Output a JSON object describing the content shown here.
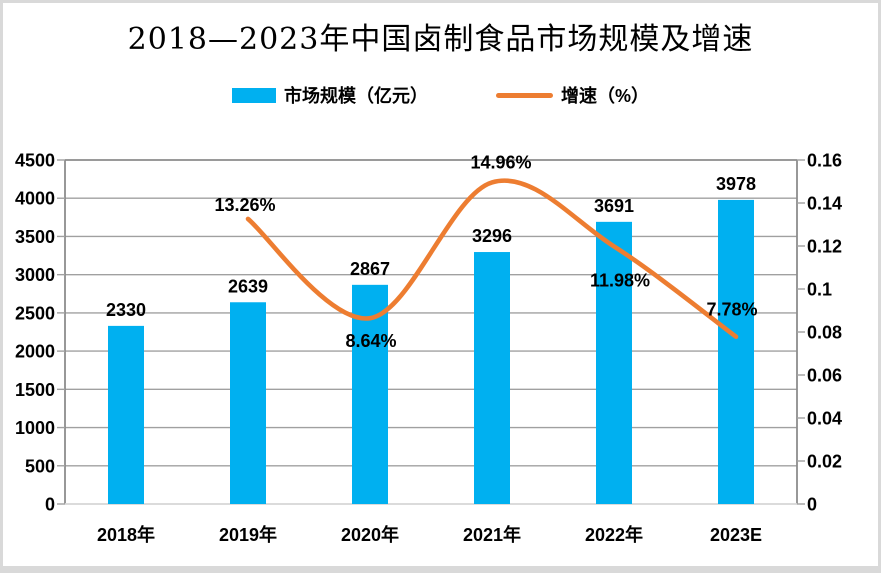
{
  "title": "2018—2023年中国卤制食品市场规模及增速",
  "legend": {
    "items": [
      {
        "label": "市场规模（亿元）",
        "swatch": "bar-swatch"
      },
      {
        "label": "增速（%）",
        "swatch": "line-swatch"
      }
    ]
  },
  "colors": {
    "bar": "#00B0F0",
    "line": "#ED7D31",
    "grid": "#a0a0a0",
    "axis": "#8c8c8c",
    "axis_bottom": "#d6d6d6",
    "text": "#000000",
    "frame": "#d9d9d9"
  },
  "chart_data": {
    "type": "bar+line combo",
    "title": "2018—2023年中国卤制食品市场规模及增速",
    "categories": [
      "2018年",
      "2019年",
      "2020年",
      "2021年",
      "2022年",
      "2023E"
    ],
    "series": [
      {
        "name": "市场规模（亿元）",
        "type": "bar",
        "axis": "left",
        "values": [
          2330,
          2639,
          2867,
          3296,
          3691,
          3978
        ],
        "data_labels": [
          "2330",
          "2639",
          "2867",
          "3296",
          "3691",
          "3978"
        ]
      },
      {
        "name": "增速（%）",
        "type": "line",
        "axis": "right",
        "smooth": true,
        "values": [
          null,
          0.1326,
          0.0864,
          0.1496,
          0.1198,
          0.0778
        ],
        "data_labels": [
          null,
          "13.26%",
          "8.64%",
          "14.96%",
          "11.98%",
          "7.78%"
        ],
        "label_offsets": [
          null,
          [
            -3,
            -8
          ],
          [
            1,
            29
          ],
          [
            9,
            -14
          ],
          [
            6,
            40
          ],
          [
            -4,
            -21
          ]
        ]
      }
    ],
    "left_axis": {
      "min": 0,
      "max": 4500,
      "step": 500,
      "ticks": [
        "0",
        "500",
        "1000",
        "1500",
        "2000",
        "2500",
        "3000",
        "3500",
        "4000",
        "4500"
      ]
    },
    "right_axis": {
      "min": 0,
      "max": 0.16,
      "step": 0.02,
      "ticks": [
        "0",
        "0.02",
        "0.04",
        "0.06",
        "0.08",
        "0.1",
        "0.12",
        "0.14",
        "0.16"
      ]
    },
    "grid": true,
    "legend_position": "top"
  }
}
